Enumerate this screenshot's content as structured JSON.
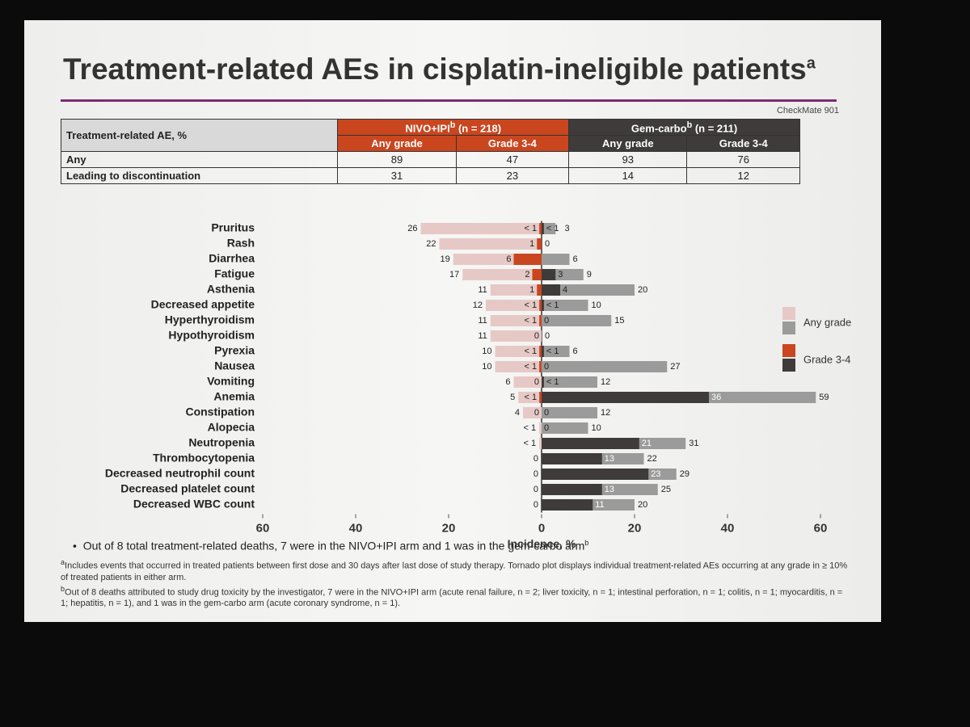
{
  "title": "Treatment-related AEs in cisplatin-ineligible patients",
  "title_note": "a",
  "study": "CheckMate 901",
  "table": {
    "header": "Treatment-related AE, %",
    "arms": [
      {
        "name": "NIVO+IPI",
        "note": "b",
        "n": "(n = 218)"
      },
      {
        "name": "Gem-carbo",
        "note": "b",
        "n": "(n = 211)"
      }
    ],
    "rows": [
      {
        "label": "Any",
        "values": [
          89,
          47,
          93,
          76
        ]
      },
      {
        "label": "Leading to discontinuation",
        "values": [
          31,
          23,
          14,
          12
        ]
      }
    ]
  },
  "chart_data": {
    "type": "tornado",
    "categories": [
      "Pruritus",
      "Rash",
      "Diarrhea",
      "Fatigue",
      "Asthenia",
      "Decreased appetite",
      "Hyperthyroidism",
      "Hypothyroidism",
      "Pyrexia",
      "Nausea",
      "Vomiting",
      "Anemia",
      "Constipation",
      "Alopecia",
      "Neutropenia",
      "Thrombocytopenia",
      "Decreased neutrophil count",
      "Decreased platelet count",
      "Decreased WBC count"
    ],
    "series": [
      {
        "name": "Any grade",
        "side": "left",
        "color": "#e6c9c6",
        "values": [
          26,
          22,
          19,
          17,
          11,
          12,
          11,
          11,
          10,
          10,
          6,
          5,
          4,
          0.5,
          0.5,
          0,
          0,
          0,
          0
        ],
        "value_labels": [
          "26",
          "22",
          "19",
          "17",
          "11",
          "12",
          "11",
          "11",
          "10",
          "10",
          "6",
          "5",
          "4",
          "< 1",
          "< 1",
          "0",
          "0",
          "0",
          "0"
        ]
      },
      {
        "name": "Grade 3-4",
        "side": "left",
        "color": "#c9461f",
        "values": [
          0.5,
          1,
          6,
          2,
          1,
          0.5,
          0.5,
          0,
          0.5,
          0.5,
          0,
          0.5,
          0,
          null,
          null,
          null,
          null,
          null,
          null
        ],
        "value_labels": [
          "< 1",
          "1",
          "6",
          "2",
          "1",
          "< 1",
          "< 1",
          "0",
          "< 1",
          "< 1",
          "0",
          "< 1",
          "0",
          null,
          null,
          null,
          null,
          null,
          null
        ]
      },
      {
        "name": "Any grade",
        "side": "right",
        "color": "#9b9b9b",
        "values": [
          3,
          0,
          6,
          9,
          20,
          10,
          15,
          0,
          6,
          27,
          12,
          59,
          12,
          10,
          31,
          22,
          29,
          25,
          20
        ],
        "value_labels": [
          "3",
          "0",
          "6",
          "9",
          "20",
          "10",
          "15",
          "0",
          "6",
          "27",
          "12",
          "59",
          "12",
          "10",
          "31",
          "22",
          "29",
          "25",
          "20"
        ]
      },
      {
        "name": "Grade 3-4",
        "side": "right",
        "color": "#3f3b3b",
        "values": [
          0.5,
          null,
          null,
          3,
          4,
          0.5,
          0,
          null,
          0.5,
          0,
          0.5,
          36,
          0,
          0,
          21,
          13,
          23,
          13,
          11
        ],
        "value_labels": [
          "< 1",
          null,
          null,
          "3",
          "4",
          "< 1",
          "0",
          null,
          "< 1",
          "0",
          "< 1",
          "36",
          "0",
          "0",
          "21",
          "13",
          "23",
          "13",
          "11"
        ]
      }
    ],
    "xlim": [
      -60,
      60
    ],
    "xticks": [
      {
        "value": -60,
        "label": "60"
      },
      {
        "value": -40,
        "label": "40"
      },
      {
        "value": -20,
        "label": "20"
      },
      0,
      20,
      40,
      60
    ],
    "xlabel": "Incidence, %"
  },
  "bullet": "Out of 8 total treatment-related deaths, 7 were in the NIVO+IPI arm and 1 was in the gem-carbo arm",
  "bullet_note": "b",
  "footnotes": [
    {
      "mark": "a",
      "text": "Includes events that occurred in treated patients between first dose and 30 days after last dose of study therapy. Tornado plot displays individual treatment-related AEs occurring at any grade in ≥ 10% of treated patients in either arm."
    },
    {
      "mark": "b",
      "text": "Out of 8 deaths attributed to study drug toxicity by the investigator, 7 were in the NIVO+IPI arm (acute renal failure, n = 2; liver toxicity, n = 1; intestinal perforation, n = 1; colitis, n = 1; myocarditis, n = 1; hepatitis, n = 1), and 1 was in the gem-carbo arm (acute coronary syndrome, n = 1)."
    }
  ]
}
